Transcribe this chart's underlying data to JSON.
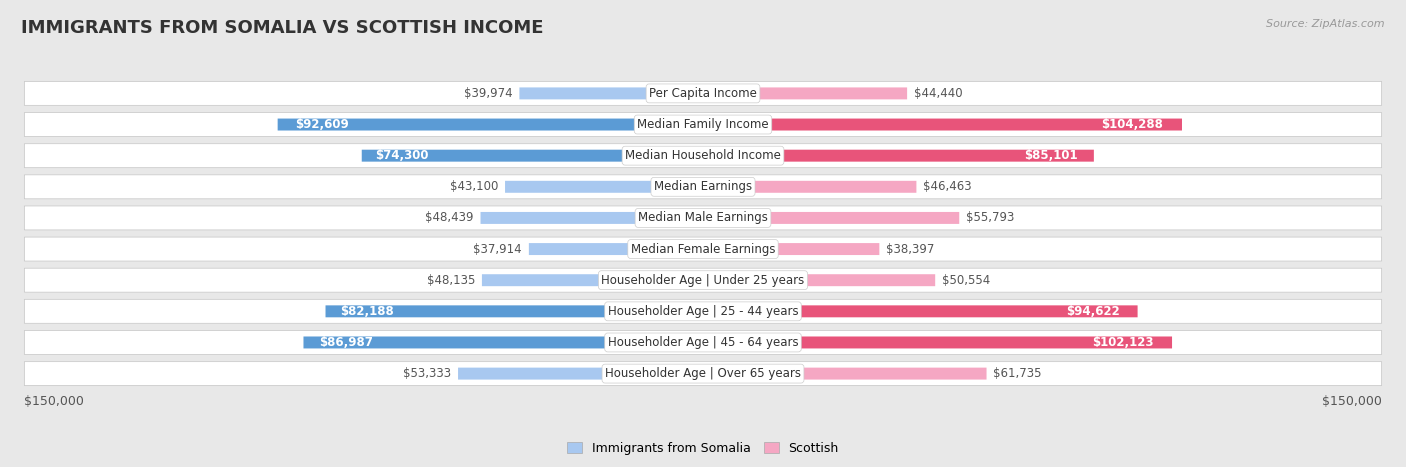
{
  "title": "IMMIGRANTS FROM SOMALIA VS SCOTTISH INCOME",
  "source": "Source: ZipAtlas.com",
  "categories": [
    "Per Capita Income",
    "Median Family Income",
    "Median Household Income",
    "Median Earnings",
    "Median Male Earnings",
    "Median Female Earnings",
    "Householder Age | Under 25 years",
    "Householder Age | 25 - 44 years",
    "Householder Age | 45 - 64 years",
    "Householder Age | Over 65 years"
  ],
  "somalia_values": [
    39974,
    92609,
    74300,
    43100,
    48439,
    37914,
    48135,
    82188,
    86987,
    53333
  ],
  "scottish_values": [
    44440,
    104288,
    85101,
    46463,
    55793,
    38397,
    50554,
    94622,
    102123,
    61735
  ],
  "somalia_labels": [
    "$39,974",
    "$92,609",
    "$74,300",
    "$43,100",
    "$48,439",
    "$37,914",
    "$48,135",
    "$82,188",
    "$86,987",
    "$53,333"
  ],
  "scottish_labels": [
    "$44,440",
    "$104,288",
    "$85,101",
    "$46,463",
    "$55,793",
    "$38,397",
    "$50,554",
    "$94,622",
    "$102,123",
    "$61,735"
  ],
  "somalia_color_light": "#a8c8f0",
  "somalia_color_dark": "#5b9bd5",
  "scottish_color_light": "#f5a7c3",
  "scottish_color_dark": "#e8547a",
  "somalia_large_threshold": 65000,
  "scottish_large_threshold": 65000,
  "max_value": 150000,
  "x_tick_label_left": "$150,000",
  "x_tick_label_right": "$150,000",
  "legend_somalia": "Immigrants from Somalia",
  "legend_scottish": "Scottish",
  "background_color": "#e8e8e8",
  "row_background": "#ffffff",
  "title_fontsize": 13,
  "label_fontsize": 8.5,
  "category_fontsize": 8.5,
  "source_fontsize": 8
}
